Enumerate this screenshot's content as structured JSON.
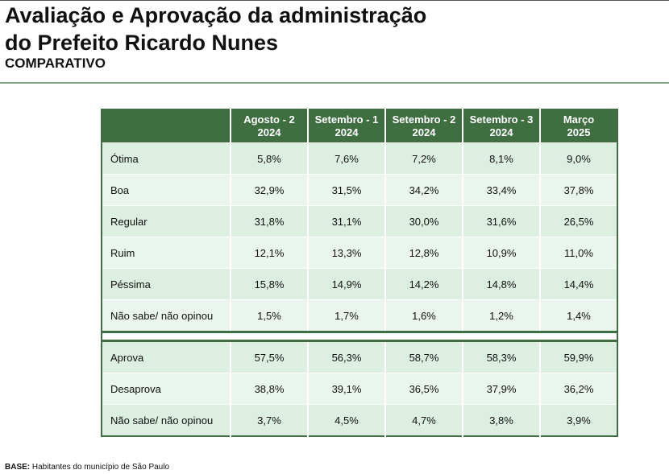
{
  "header": {
    "title_line1": "Avaliação e Aprovação da administração",
    "title_line2": "do Prefeito Ricardo Nunes",
    "subtitle": "COMPARATIVO"
  },
  "table": {
    "columns": [
      {
        "line1": "Agosto - 2",
        "line2": "2024"
      },
      {
        "line1": "Setembro - 1",
        "line2": "2024"
      },
      {
        "line1": "Setembro - 2",
        "line2": "2024"
      },
      {
        "line1": "Setembro - 3",
        "line2": "2024"
      },
      {
        "line1": "Março",
        "line2": "2025"
      }
    ],
    "evaluation_rows": [
      {
        "label": "Ótima",
        "values": [
          "5,8%",
          "7,6%",
          "7,2%",
          "8,1%",
          "9,0%"
        ]
      },
      {
        "label": "Boa",
        "values": [
          "32,9%",
          "31,5%",
          "34,2%",
          "33,4%",
          "37,8%"
        ]
      },
      {
        "label": "Regular",
        "values": [
          "31,8%",
          "31,1%",
          "30,0%",
          "31,6%",
          "26,5%"
        ]
      },
      {
        "label": "Ruim",
        "values": [
          "12,1%",
          "13,3%",
          "12,8%",
          "10,9%",
          "11,0%"
        ]
      },
      {
        "label": "Péssima",
        "values": [
          "15,8%",
          "14,9%",
          "14,2%",
          "14,8%",
          "14,4%"
        ]
      },
      {
        "label": "Não sabe/ não opinou",
        "values": [
          "1,5%",
          "1,7%",
          "1,6%",
          "1,2%",
          "1,4%"
        ]
      }
    ],
    "approval_rows": [
      {
        "label": "Aprova",
        "values": [
          "57,5%",
          "56,3%",
          "58,7%",
          "58,3%",
          "59,9%"
        ]
      },
      {
        "label": "Desaprova",
        "values": [
          "38,8%",
          "39,1%",
          "36,5%",
          "37,9%",
          "36,2%"
        ]
      },
      {
        "label": "Não sabe/ não opinou",
        "values": [
          "3,7%",
          "4,5%",
          "4,7%",
          "3,8%",
          "3,9%"
        ]
      }
    ]
  },
  "footer": {
    "base_label": "BASE:",
    "base_text": " Habitantes do município de São Paulo"
  },
  "colors": {
    "header_green": "#3f6e41",
    "row_light": "#dcefe1",
    "row_lighter": "#eaf6ed"
  }
}
